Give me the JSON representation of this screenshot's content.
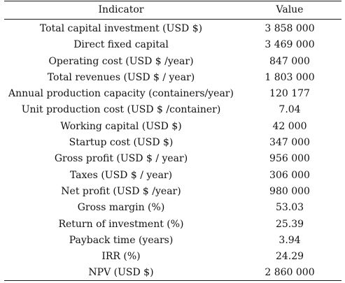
{
  "table": {
    "headers": {
      "indicator": "Indicator",
      "value": "Value"
    },
    "rows": [
      {
        "indicator": "Total capital investment (USD $)",
        "value": "3 858 000"
      },
      {
        "indicator": "Direct fixed capital",
        "value": "3 469 000"
      },
      {
        "indicator": "Operating cost (USD $ /year)",
        "value": "847 000"
      },
      {
        "indicator": "Total revenues (USD $ / year)",
        "value": "1 803 000"
      },
      {
        "indicator": "Annual production capacity (containers/year)",
        "value": "120 177"
      },
      {
        "indicator": "Unit production cost (USD $ /container)",
        "value": "7.04"
      },
      {
        "indicator": "Working capital (USD $)",
        "value": "42 000"
      },
      {
        "indicator": "Startup cost (USD $)",
        "value": "347 000"
      },
      {
        "indicator": "Gross profit (USD $ / year)",
        "value": "956 000"
      },
      {
        "indicator": "Taxes (USD $ / year)",
        "value": "306 000"
      },
      {
        "indicator": "Net profit (USD $ /year)",
        "value": "980 000"
      },
      {
        "indicator": "Gross margin (%)",
        "value": "53.03"
      },
      {
        "indicator": "Return of investment (%)",
        "value": "25.39"
      },
      {
        "indicator": "Payback time (years)",
        "value": "3.94"
      },
      {
        "indicator": "IRR (%)",
        "value": "24.29"
      },
      {
        "indicator": "NPV (USD $)",
        "value": "2 860 000"
      }
    ]
  }
}
